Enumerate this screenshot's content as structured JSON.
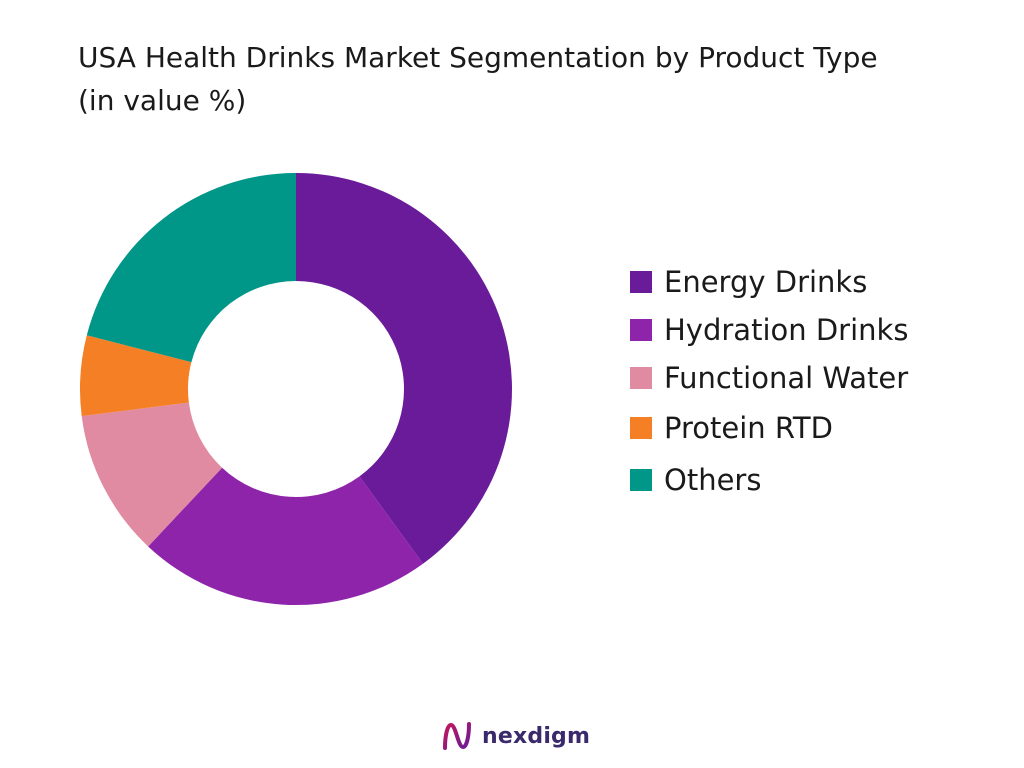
{
  "chart_data": {
    "type": "pie",
    "title_line1": "USA Health Drinks Market Segmentation by Product Type",
    "title_line2": "(in value %)",
    "donut": true,
    "categories": [
      "Energy Drinks",
      "Hydration Drinks",
      "Functional Water",
      "Protein RTD",
      "Others"
    ],
    "values": [
      40,
      22,
      11,
      6,
      21
    ],
    "colors": [
      "#6a1b9a",
      "#8e24aa",
      "#e08ba1",
      "#f57f24",
      "#009688"
    ],
    "legend_position": "right"
  },
  "branding": {
    "logo_text": "nexdigm",
    "logo_color": "#3a2a6b"
  }
}
